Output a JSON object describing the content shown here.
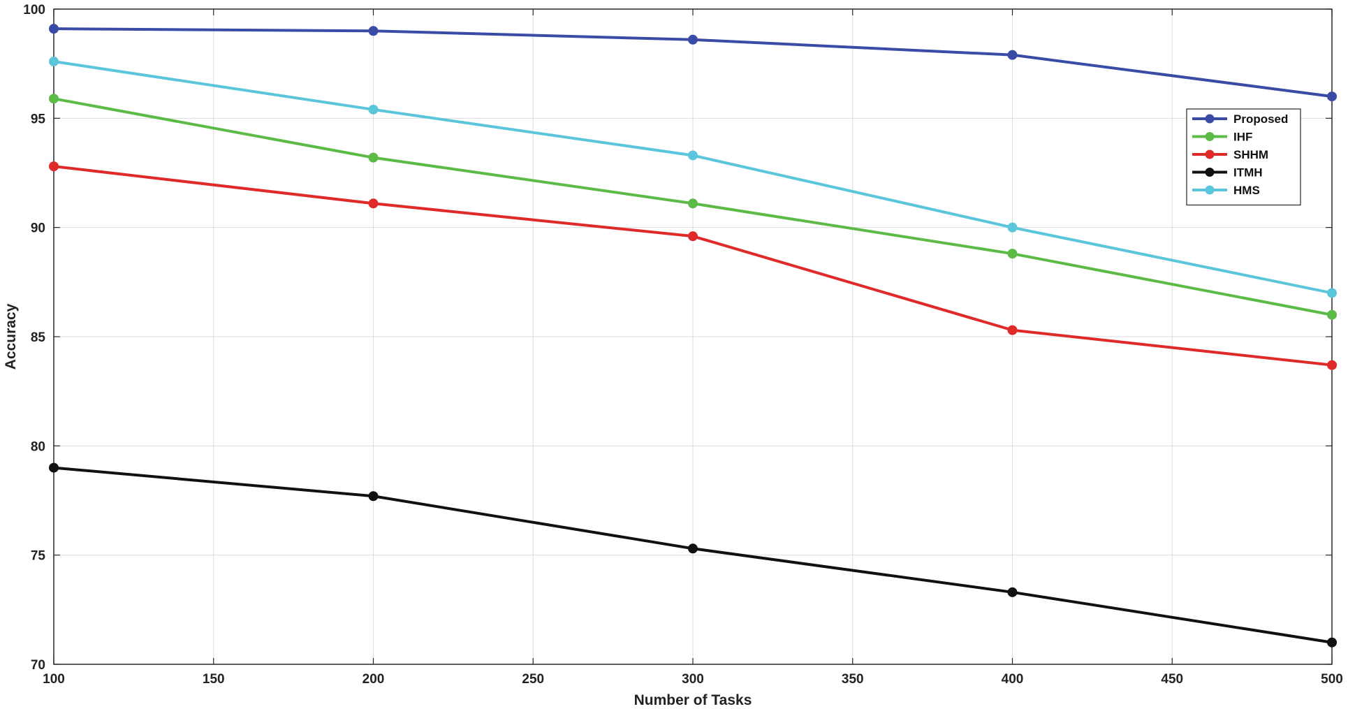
{
  "chart_data": {
    "type": "line",
    "title": "",
    "xlabel": "Number of Tasks",
    "ylabel": "Accuracy",
    "xlim": [
      100,
      500
    ],
    "ylim": [
      70,
      100
    ],
    "xticks": [
      100,
      150,
      200,
      250,
      300,
      350,
      400,
      450,
      500
    ],
    "yticks": [
      70,
      75,
      80,
      85,
      90,
      95,
      100
    ],
    "grid": true,
    "legend_position": "top-right",
    "x": [
      100,
      200,
      300,
      400,
      500
    ],
    "series": [
      {
        "name": "Proposed",
        "color": "#3a4ba6",
        "values": [
          99.1,
          99.0,
          98.6,
          97.9,
          96.0
        ]
      },
      {
        "name": "IHF",
        "color": "#5cba47",
        "values": [
          95.9,
          93.2,
          91.1,
          88.8,
          86.0
        ]
      },
      {
        "name": "SHHM",
        "color": "#e02a2a",
        "values": [
          92.8,
          91.1,
          89.6,
          85.3,
          83.7
        ]
      },
      {
        "name": "ITMH",
        "color": "#111111",
        "values": [
          79.0,
          77.7,
          75.3,
          73.3,
          71.0
        ]
      },
      {
        "name": "HMS",
        "color": "#5bc5db",
        "values": [
          97.6,
          95.4,
          93.3,
          90.0,
          87.0
        ]
      }
    ]
  }
}
